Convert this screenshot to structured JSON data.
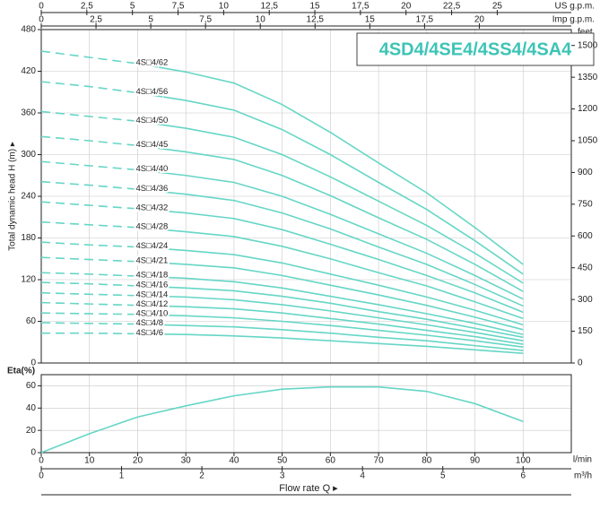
{
  "chart_data": [
    {
      "type": "line",
      "title": "4SD4/4SE4/4SS4/4SA4",
      "y_label": "Total dynamic head H (m) ▸",
      "x": [
        0,
        10,
        20,
        30,
        40,
        50,
        60,
        70,
        80,
        90,
        100
      ],
      "xlim": [
        0,
        110
      ],
      "ylim": [
        0,
        480
      ],
      "yticks": [
        0,
        60,
        120,
        180,
        240,
        300,
        360,
        420,
        480
      ],
      "y2_label": "feet",
      "y2lim": [
        0,
        1575
      ],
      "y2ticks": [
        0,
        150,
        300,
        450,
        600,
        750,
        900,
        1050,
        1200,
        1350,
        1500
      ],
      "top_axes": [
        {
          "label": "US g.p.m.",
          "xlim": [
            0,
            29.06
          ],
          "xticks": [
            0,
            {
              "value": 2.5,
              "label": "2,5"
            },
            5,
            {
              "value": 7.5,
              "label": "7,5"
            },
            10,
            {
              "value": 12.5,
              "label": "12,5"
            },
            15,
            {
              "value": 17.5,
              "label": "17,5"
            },
            20,
            {
              "value": 22.5,
              "label": "22,5"
            },
            25
          ]
        },
        {
          "label": "Imp g.p.m.",
          "xlim": [
            0,
            24.2
          ],
          "xticks": [
            0,
            {
              "value": 2.5,
              "label": "2,5"
            },
            5,
            {
              "value": 7.5,
              "label": "7,5"
            },
            10,
            {
              "value": 12.5,
              "label": "12,5"
            },
            15,
            {
              "value": 17.5,
              "label": "17,5"
            },
            20
          ]
        }
      ],
      "grid": true,
      "dashed_x_range": [
        0,
        20
      ],
      "series": [
        {
          "name": "4S□4/62",
          "color": "#66d6c6",
          "values": [
            449,
            440,
            431,
            419,
            403,
            372,
            332,
            288,
            245,
            195,
            142
          ]
        },
        {
          "name": "4S□4/56",
          "color": "#66d6c6",
          "values": [
            405,
            398,
            389,
            378,
            364,
            336,
            300,
            260,
            221,
            176,
            128
          ]
        },
        {
          "name": "4S□4/50",
          "color": "#66d6c6",
          "values": [
            362,
            355,
            348,
            338,
            325,
            300,
            268,
            233,
            198,
            158,
            115
          ]
        },
        {
          "name": "4S□4/45",
          "color": "#66d6c6",
          "values": [
            326,
            320,
            313,
            304,
            293,
            270,
            241,
            209,
            178,
            142,
            103
          ]
        },
        {
          "name": "4S□4/40",
          "color": "#66d6c6",
          "values": [
            290,
            284,
            278,
            270,
            260,
            240,
            214,
            186,
            158,
            126,
            92
          ]
        },
        {
          "name": "4S□4/36",
          "color": "#66d6c6",
          "values": [
            261,
            256,
            250,
            243,
            234,
            216,
            193,
            167,
            142,
            113,
            82
          ]
        },
        {
          "name": "4S□4/32",
          "color": "#66d6c6",
          "values": [
            232,
            227,
            222,
            216,
            208,
            192,
            171,
            149,
            126,
            101,
            73
          ]
        },
        {
          "name": "4S□4/28",
          "color": "#66d6c6",
          "values": [
            203,
            199,
            195,
            189,
            182,
            168,
            150,
            130,
            111,
            88,
            64
          ]
        },
        {
          "name": "4S□4/24",
          "color": "#66d6c6",
          "values": [
            174,
            170,
            167,
            162,
            156,
            144,
            128,
            112,
            95,
            76,
            55
          ]
        },
        {
          "name": "4S□4/21",
          "color": "#66d6c6",
          "values": [
            152,
            149,
            146,
            142,
            137,
            126,
            112,
            98,
            83,
            66,
            48
          ]
        },
        {
          "name": "4S□4/18",
          "color": "#66d6c6",
          "values": [
            130,
            128,
            125,
            122,
            117,
            108,
            96,
            84,
            71,
            57,
            41
          ]
        },
        {
          "name": "4S□4/16",
          "color": "#66d6c6",
          "values": [
            116,
            114,
            111,
            108,
            104,
            96,
            86,
            74,
            63,
            50,
            37
          ]
        },
        {
          "name": "4S□4/14",
          "color": "#66d6c6",
          "values": [
            101,
            99,
            97,
            95,
            91,
            84,
            75,
            65,
            55,
            44,
            32
          ]
        },
        {
          "name": "4S□4/12",
          "color": "#66d6c6",
          "values": [
            87,
            85,
            83,
            81,
            78,
            72,
            64,
            56,
            47,
            38,
            27
          ]
        },
        {
          "name": "4S□4/10",
          "color": "#66d6c6",
          "values": [
            72,
            71,
            70,
            68,
            65,
            60,
            54,
            47,
            40,
            32,
            23
          ]
        },
        {
          "name": "4S□4/8",
          "color": "#66d6c6",
          "values": [
            58,
            57,
            56,
            54,
            52,
            48,
            43,
            37,
            32,
            25,
            18
          ]
        },
        {
          "name": "4S□4/6",
          "color": "#66d6c6",
          "values": [
            43,
            43,
            42,
            41,
            39,
            36,
            32,
            28,
            24,
            19,
            14
          ]
        }
      ]
    },
    {
      "type": "line",
      "y_label": "Eta(%)",
      "x": [
        0,
        10,
        20,
        30,
        40,
        50,
        60,
        70,
        80,
        90,
        100
      ],
      "values": [
        0,
        17,
        32,
        42,
        51,
        57,
        59,
        59,
        55,
        44,
        28
      ],
      "color": "#66d6c6",
      "xlim": [
        0,
        110
      ],
      "xticks": [
        0,
        10,
        20,
        30,
        40,
        50,
        60,
        70,
        80,
        90,
        100
      ],
      "x_unit": "l/min",
      "ylim": [
        0,
        70
      ],
      "yticks": [
        0,
        20,
        40,
        60
      ],
      "grid": true,
      "bottom_axis": {
        "label": "m³/h",
        "xlim": [
          0,
          6.6
        ],
        "xticks": [
          0,
          1,
          2,
          3,
          4,
          5,
          6
        ]
      },
      "x_label": "Flow rate  Q  ▸"
    }
  ]
}
